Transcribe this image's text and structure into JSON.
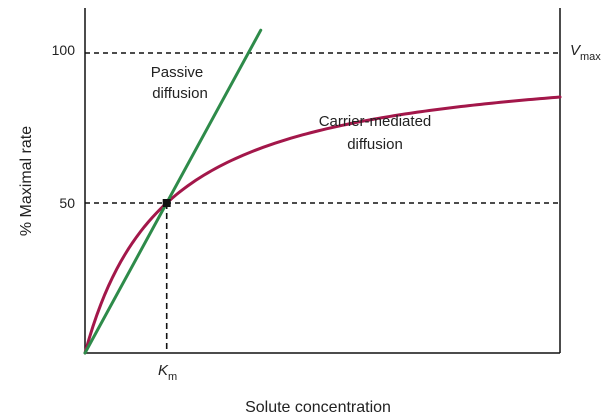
{
  "chart_data": {
    "type": "line",
    "xlabel": "Solute concentration",
    "ylabel": "% Maximal rate",
    "y_ticks": [
      50,
      100
    ],
    "ylim": [
      0,
      115
    ],
    "xlim": [
      0,
      10
    ],
    "grid": false,
    "series": [
      {
        "name_lines": [
          "Passive",
          "diffusion"
        ],
        "kind": "linear",
        "color": "#2e8b4a",
        "x": [
          0,
          3.7
        ],
        "y": [
          0,
          107.6
        ]
      },
      {
        "name_lines": [
          "Carrier-mediated",
          "diffusion"
        ],
        "kind": "michaelis-menten",
        "color": "#a3174a",
        "vmax": 100,
        "km": 1.72
      }
    ],
    "annotations": {
      "vmax": {
        "main": "V",
        "sub": "max",
        "value": 100
      },
      "km": {
        "main": "K",
        "sub": "m",
        "value": 1.72
      }
    },
    "reference_lines": {
      "horizontal": [
        100,
        50
      ],
      "vertical_at_km": true,
      "style": "dashed",
      "color": "#111111"
    }
  }
}
